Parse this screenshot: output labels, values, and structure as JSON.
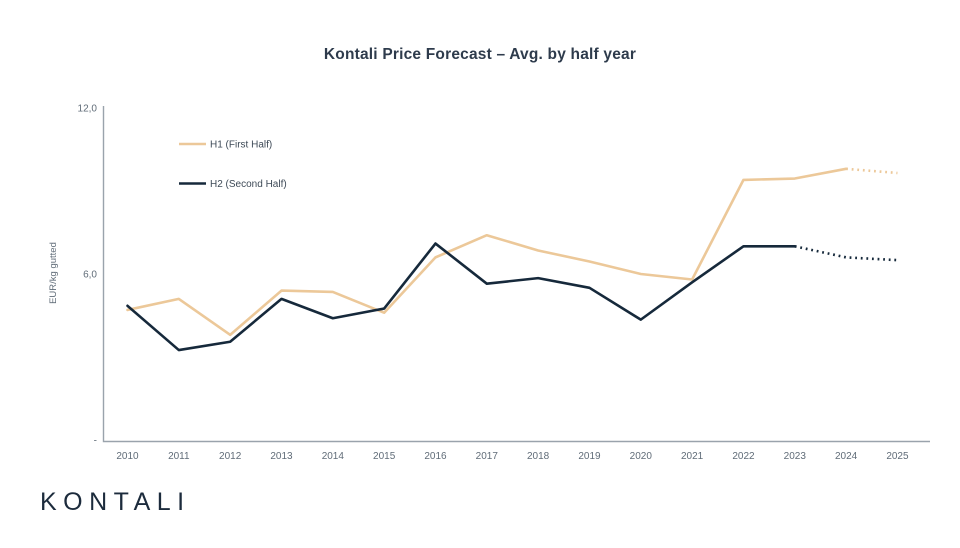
{
  "title": "Kontali Price Forecast – Avg. by half year",
  "logo_text": "KONTALI",
  "chart_data": {
    "type": "line",
    "title": "Kontali Price Forecast – Avg. by half year",
    "xlabel": "",
    "ylabel": "EUR/kg gutted",
    "ylim": [
      0,
      12
    ],
    "grid": false,
    "legend_position": "upper-left-inside",
    "x": [
      2010,
      2011,
      2012,
      2013,
      2014,
      2015,
      2016,
      2017,
      2018,
      2019,
      2020,
      2021,
      2022,
      2023,
      2024,
      2025
    ],
    "yticks": [
      {
        "value": 12,
        "label": "12,0"
      },
      {
        "value": 6,
        "label": "6,0"
      },
      {
        "value": 0,
        "label": "-"
      }
    ],
    "series": [
      {
        "name": "H1 (First Half)",
        "color": "#ECC899",
        "values": [
          4.7,
          5.1,
          3.8,
          5.4,
          5.35,
          4.6,
          6.6,
          7.4,
          6.85,
          6.45,
          6.0,
          5.8,
          9.4,
          9.45,
          9.8,
          9.65
        ],
        "solid_until_year": 2024,
        "forecast_style": "dotted"
      },
      {
        "name": "H2 (Second Half)",
        "color": "#16293B",
        "values": [
          4.85,
          3.25,
          3.55,
          5.1,
          4.4,
          4.75,
          7.1,
          5.65,
          5.85,
          5.5,
          4.35,
          5.7,
          7.0,
          7.0,
          6.6,
          6.5
        ],
        "solid_until_year": 2023,
        "forecast_style": "dotted"
      }
    ]
  },
  "colors": {
    "background": "#FFFFFF",
    "axis": "#9AA3AC",
    "tick_text": "#606C78",
    "legend_text": "#3E4A57",
    "title_text": "#2E3B4C",
    "logo_text": "#1C2B3C"
  }
}
